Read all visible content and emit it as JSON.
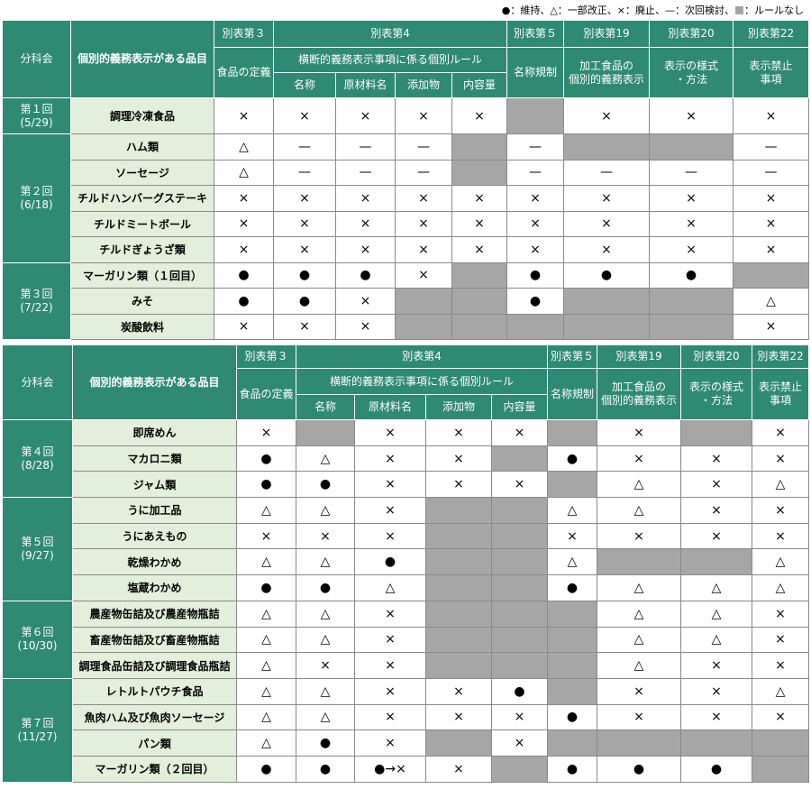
{
  "legend": [
    "●：維持、△：一部改正、×：廃止、—：次回検討、",
    "：ルールなし"
  ],
  "tables": [
    {
      "header": {
        "col1": "分科会",
        "col2": "個別的義務表示がある品目",
        "annex3": "別表第３",
        "annex4": "別表第4",
        "annex5": "別表第５",
        "annex19": "別表第19",
        "annex20": "別表第20",
        "annex22": "別表第22",
        "food_def": "食品の定義",
        "cross_rules": "横断的義務表示事項に係る個別ルール",
        "name_reg": "名称規制",
        "processed": "加工食品の\n個別的義務表示",
        "style": "表示の様式\n・方法",
        "prohibited": "表示禁止\n事項",
        "name": "名称",
        "ingredients": "原材料名",
        "additives": "添加物",
        "content": "内容量"
      },
      "groups": [
        {
          "session": "第１回",
          "date": "(5/29)",
          "rows": [
            {
              "item": "調理冷凍食品",
              "cells": [
                "×",
                "×",
                "×",
                "×",
                "×",
                null,
                "×",
                "×",
                "×"
              ]
            }
          ]
        },
        {
          "session": "第２回",
          "date": "(6/18)",
          "rows": [
            {
              "item": "ハム類",
              "cells": [
                "△",
                "—",
                "—",
                "—",
                null,
                "—",
                null,
                null,
                "—"
              ]
            },
            {
              "item": "ソーセージ",
              "cells": [
                "△",
                "—",
                "—",
                "—",
                null,
                "—",
                "—",
                "—",
                "—"
              ]
            },
            {
              "item": "チルドハンバーグステーキ",
              "cells": [
                "×",
                "×",
                "×",
                "×",
                "×",
                "×",
                "×",
                "×",
                "×"
              ]
            },
            {
              "item": "チルドミートボール",
              "cells": [
                "×",
                "×",
                "×",
                "×",
                "×",
                "×",
                "×",
                "×",
                "×"
              ]
            },
            {
              "item": "チルドぎょうざ類",
              "cells": [
                "×",
                "×",
                "×",
                "×",
                "×",
                "×",
                "×",
                "×",
                "×"
              ]
            }
          ]
        },
        {
          "session": "第３回",
          "date": "(7/22)",
          "rows": [
            {
              "item": "マーガリン類（１回目）",
              "cells": [
                "●",
                "●",
                "●",
                "×",
                null,
                "●",
                "●",
                "●",
                null
              ]
            },
            {
              "item": "みそ",
              "cells": [
                "●",
                "●",
                "×",
                null,
                null,
                "●",
                null,
                null,
                "△"
              ]
            },
            {
              "item": "炭酸飲料",
              "cells": [
                "×",
                "×",
                "×",
                null,
                null,
                null,
                null,
                null,
                "×"
              ]
            }
          ]
        }
      ]
    },
    {
      "header": {
        "col1": "分科会",
        "col2": "個別的義務表示がある品目",
        "annex3": "別表第３",
        "annex4": "別表第4",
        "annex5": "別表第５",
        "annex19": "別表第19",
        "annex20": "別表第20",
        "annex22": "別表第22",
        "food_def": "食品の定義",
        "cross_rules": "横断的義務表示事項に係る個別ルール",
        "name_reg": "名称規制",
        "processed": "加工食品の\n個別的義務表示",
        "style": "表示の様式\n・方法",
        "prohibited": "表示禁止\n事項",
        "name": "名称",
        "ingredients": "原材料名",
        "additives": "添加物",
        "content": "内容量"
      },
      "groups": [
        {
          "session": "第４回",
          "date": "(8/28)",
          "rows": [
            {
              "item": "即席めん",
              "cells": [
                "×",
                null,
                "×",
                "×",
                "×",
                null,
                "×",
                null,
                "×"
              ]
            },
            {
              "item": "マカロニ類",
              "cells": [
                "●",
                "△",
                "×",
                "×",
                null,
                "●",
                "×",
                "×",
                "×"
              ]
            },
            {
              "item": "ジャム類",
              "cells": [
                "●",
                "●",
                "×",
                "×",
                "×",
                null,
                "△",
                "×",
                "△"
              ]
            }
          ]
        },
        {
          "session": "第５回",
          "date": "(9/27)",
          "rows": [
            {
              "item": "うに加工品",
              "cells": [
                "△",
                "△",
                "×",
                null,
                null,
                "△",
                "△",
                "×",
                "×"
              ]
            },
            {
              "item": "うにあえもの",
              "cells": [
                "×",
                "×",
                "×",
                null,
                null,
                "×",
                "×",
                "×",
                "×"
              ]
            },
            {
              "item": "乾燥わかめ",
              "cells": [
                "△",
                "△",
                "●",
                null,
                null,
                "△",
                null,
                null,
                "△"
              ]
            },
            {
              "item": "塩蔵わかめ",
              "cells": [
                "●",
                "●",
                "△",
                null,
                null,
                "●",
                "△",
                "△",
                "△"
              ]
            }
          ]
        },
        {
          "session": "第６回",
          "date": "(10/30)",
          "rows": [
            {
              "item": "農産物缶詰及び農産物瓶詰",
              "cells": [
                "△",
                "△",
                "×",
                null,
                null,
                null,
                "△",
                "△",
                "×"
              ]
            },
            {
              "item": "畜産物缶詰及び畜産物瓶詰",
              "cells": [
                "△",
                "△",
                "×",
                null,
                null,
                null,
                "△",
                "△",
                "×"
              ]
            },
            {
              "item": "調理食品缶詰及び調理食品瓶詰",
              "cells": [
                "△",
                "×",
                "×",
                null,
                null,
                null,
                "△",
                "×",
                "×"
              ]
            }
          ]
        },
        {
          "session": "第７回",
          "date": "(11/27)",
          "rows": [
            {
              "item": "レトルトパウチ食品",
              "cells": [
                "△",
                "△",
                "×",
                "×",
                "●",
                null,
                "×",
                "×",
                "△"
              ]
            },
            {
              "item": "魚肉ハム及び魚肉ソーセージ",
              "cells": [
                "△",
                "△",
                "×",
                "×",
                "×",
                "●",
                "×",
                "×",
                "×"
              ]
            },
            {
              "item": "パン類",
              "cells": [
                "△",
                "●",
                "×",
                null,
                "×",
                null,
                null,
                null,
                null
              ]
            },
            {
              "item": "マーガリン類（２回目）",
              "cells": [
                "●",
                "●",
                "●→×",
                "×",
                null,
                "●",
                "●",
                "●",
                null
              ]
            }
          ]
        }
      ]
    }
  ]
}
